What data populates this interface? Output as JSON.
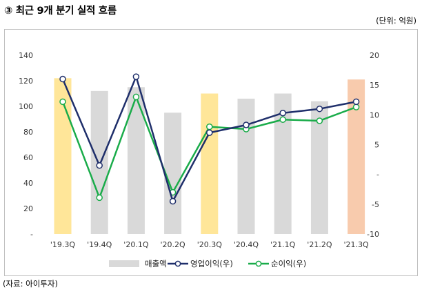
{
  "header": {
    "title": "③ 최근 9개 분기 실적 흐름",
    "unit": "(단위: 억원)"
  },
  "footer": {
    "source": "(자료: 아이투자)"
  },
  "colors": {
    "bar_default": "#d9d9d9",
    "bar_highlight_yellow": "#ffe699",
    "bar_highlight_orange": "#f8cbad",
    "operating_profit": "#1f2f6b",
    "net_profit": "#1aac4a"
  },
  "chart_data": {
    "type": "bar+line",
    "categories": [
      "'19.3Q",
      "'19.4Q",
      "'20.1Q",
      "'20.2Q",
      "'20.3Q",
      "'20.4Q",
      "'21.1Q",
      "'21.2Q",
      "'21.3Q"
    ],
    "bar_colors": [
      "yellow",
      "gray",
      "gray",
      "gray",
      "yellow",
      "gray",
      "gray",
      "gray",
      "orange"
    ],
    "y_left": {
      "min": 0,
      "max": 140,
      "step": 20,
      "tick_labels": [
        "-",
        "20",
        "40",
        "60",
        "80",
        "100",
        "120",
        "140"
      ]
    },
    "y_right": {
      "min": -10,
      "max": 20,
      "step": 5,
      "tick_labels": [
        "-10",
        "-5",
        "-",
        "5",
        "10",
        "15",
        "20"
      ]
    },
    "series": [
      {
        "name": "매출액",
        "type": "bar",
        "axis": "left",
        "values": [
          122,
          112,
          115,
          95,
          110,
          106,
          110,
          104,
          121
        ]
      },
      {
        "name": "영업이익(우)",
        "type": "line",
        "axis": "right",
        "values": [
          16.0,
          1.5,
          16.4,
          -4.5,
          7.0,
          8.3,
          10.3,
          11.0,
          12.2
        ]
      },
      {
        "name": "순이익(우)",
        "type": "line",
        "axis": "right",
        "values": [
          12.2,
          -3.9,
          13.0,
          -3.0,
          8.0,
          7.6,
          9.2,
          9.0,
          11.3
        ]
      }
    ],
    "legend": [
      "매출액",
      "영업이익(우)",
      "순이익(우)"
    ],
    "legend_position": "bottom"
  }
}
